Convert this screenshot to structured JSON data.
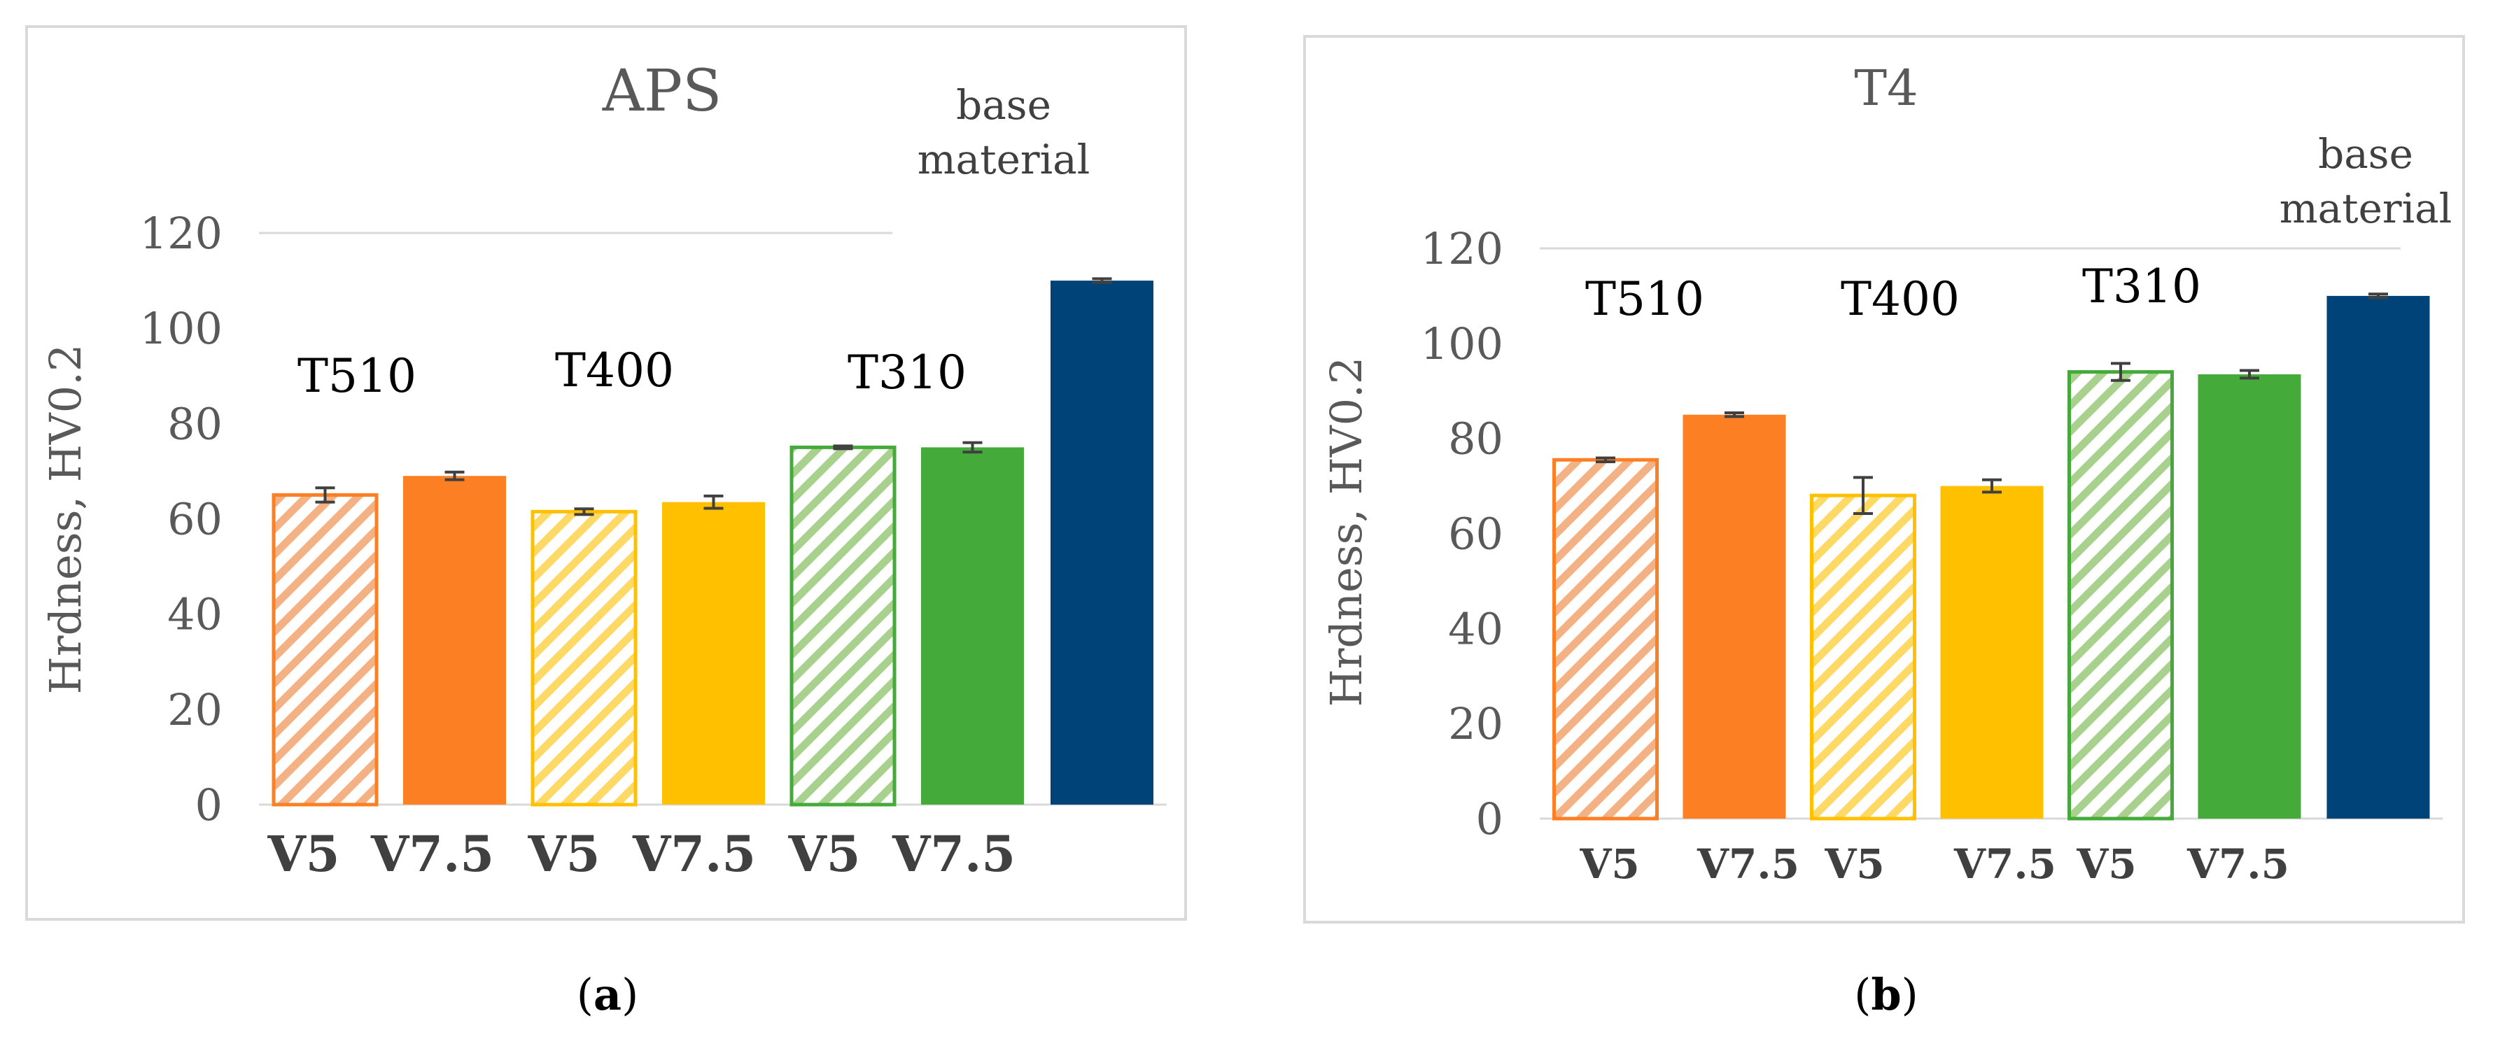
{
  "chart_data": [
    {
      "type": "bar",
      "panel": "(a)",
      "title": "APS",
      "ylabel": "Hrdness, HV0.2",
      "ylim": [
        0,
        120
      ],
      "yticks": [
        0,
        20,
        40,
        60,
        80,
        100,
        120
      ],
      "grid": true,
      "group_labels": [
        "T510",
        "T400",
        "T310",
        "base\nmaterial"
      ],
      "bars": [
        {
          "label": "V5",
          "group": "T510",
          "value": 65,
          "error": 1.5,
          "color": "#f4b183",
          "pattern": "hatched"
        },
        {
          "label": "V7.5",
          "group": "T510",
          "value": 69,
          "error": 0.8,
          "color": "#fd7f23",
          "pattern": "solid"
        },
        {
          "label": "V5",
          "group": "T400",
          "value": 61.5,
          "error": 0.6,
          "color": "#ffd966",
          "pattern": "hatched"
        },
        {
          "label": "V7.5",
          "group": "T400",
          "value": 63.5,
          "error": 1.3,
          "color": "#ffc000",
          "pattern": "solid"
        },
        {
          "label": "V5",
          "group": "T310",
          "value": 75,
          "error": 0.3,
          "color": "#a9d18e",
          "pattern": "hatched"
        },
        {
          "label": "V7.5",
          "group": "T310",
          "value": 75,
          "error": 1.0,
          "color": "#44aa3a",
          "pattern": "solid"
        },
        {
          "label": "",
          "group": "base material",
          "value": 110,
          "error": 0.4,
          "color": "#004379",
          "pattern": "solid"
        }
      ]
    },
    {
      "type": "bar",
      "panel": "(b)",
      "title": "T4",
      "ylabel": "Hrdness, HV0.2",
      "ylim": [
        0,
        120
      ],
      "yticks": [
        0,
        20,
        40,
        60,
        80,
        100,
        120
      ],
      "grid": true,
      "group_labels": [
        "T510",
        "T400",
        "T310",
        "base\nmaterial"
      ],
      "bars": [
        {
          "label": "V5",
          "group": "T510",
          "value": 75.5,
          "error": 0.4,
          "color": "#f4b183",
          "pattern": "hatched"
        },
        {
          "label": "V7.5",
          "group": "T510",
          "value": 85,
          "error": 0.4,
          "color": "#fd7f23",
          "pattern": "solid"
        },
        {
          "label": "V5",
          "group": "T400",
          "value": 68,
          "error": 3.8,
          "color": "#ffd966",
          "pattern": "hatched"
        },
        {
          "label": "V7.5",
          "group": "T400",
          "value": 70,
          "error": 1.3,
          "color": "#ffc000",
          "pattern": "solid"
        },
        {
          "label": "V5",
          "group": "T310",
          "value": 94,
          "error": 1.8,
          "color": "#a9d18e",
          "pattern": "hatched"
        },
        {
          "label": "V7.5",
          "group": "T310",
          "value": 93.5,
          "error": 0.8,
          "color": "#44aa3a",
          "pattern": "solid"
        },
        {
          "label": "",
          "group": "base material",
          "value": 110,
          "error": 0.4,
          "color": "#004379",
          "pattern": "solid"
        }
      ]
    }
  ],
  "captions": {
    "a": {
      "open": "(",
      "letter": "a",
      "close": ")"
    },
    "b": {
      "open": "(",
      "letter": "b",
      "close": ")"
    }
  }
}
